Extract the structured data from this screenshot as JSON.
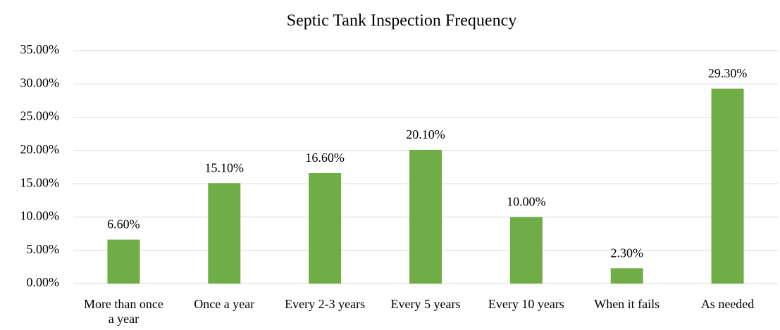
{
  "chart_data": {
    "type": "bar",
    "title": "Septic Tank Inspection Frequency",
    "categories": [
      "More than once a year",
      "Once a year",
      "Every 2-3 years",
      "Every 5 years",
      "Every 10 years",
      "When it fails",
      "As needed"
    ],
    "values": [
      6.6,
      15.1,
      16.6,
      20.1,
      10.0,
      2.3,
      29.3
    ],
    "value_labels": [
      "6.60%",
      "15.10%",
      "16.60%",
      "20.10%",
      "10.00%",
      "2.30%",
      "29.30%"
    ],
    "color": "#70ad47",
    "ylim": [
      0,
      35
    ],
    "yticks": [
      {
        "value": 0,
        "label": "0.00%"
      },
      {
        "value": 5,
        "label": "5.00%"
      },
      {
        "value": 10,
        "label": "10.00%"
      },
      {
        "value": 15,
        "label": "15.00%"
      },
      {
        "value": 20,
        "label": "20.00%"
      },
      {
        "value": 25,
        "label": "25.00%"
      },
      {
        "value": 30,
        "label": "30.00%"
      },
      {
        "value": 35,
        "label": "35.00%"
      }
    ],
    "grid": true
  }
}
